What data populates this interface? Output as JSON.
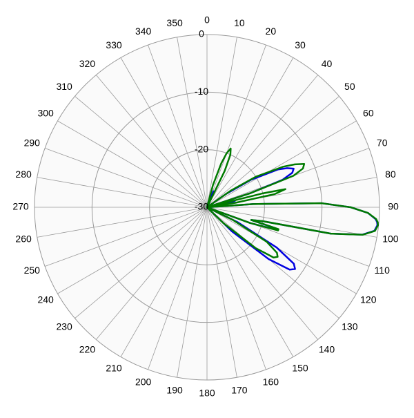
{
  "chart_data": {
    "type": "polar-line",
    "xlim": [
      0,
      360
    ],
    "xticks": [
      0,
      10,
      20,
      30,
      40,
      50,
      60,
      70,
      80,
      90,
      100,
      110,
      120,
      130,
      140,
      150,
      160,
      170,
      180,
      190,
      200,
      210,
      220,
      230,
      240,
      250,
      260,
      270,
      280,
      290,
      300,
      310,
      320,
      330,
      340,
      350
    ],
    "ylim": [
      -30,
      0
    ],
    "yticks": [
      0,
      -10,
      -20,
      -30
    ],
    "grid": true,
    "x": [
      0,
      5,
      10,
      15,
      18,
      20,
      22,
      24,
      26,
      30,
      40,
      50,
      55,
      58,
      62,
      64,
      66,
      68,
      70,
      72,
      74,
      76,
      77,
      79,
      81,
      83,
      86,
      88,
      90,
      92,
      94,
      95,
      96,
      98,
      100,
      102,
      104,
      106,
      107,
      108,
      110,
      112,
      116,
      120,
      123,
      125,
      127,
      130,
      134,
      140,
      180,
      270,
      360
    ],
    "series": [
      {
        "color": "#0000e0",
        "values": [
          -30,
          -30,
          -30,
          -29,
          -28,
          -28,
          -27,
          -28,
          -29,
          -30,
          -30,
          -30,
          -26,
          -21,
          -16,
          -14.5,
          -13.5,
          -14,
          -16,
          -22,
          -30,
          -26,
          -25,
          -26,
          -28,
          -30,
          -22,
          -10,
          -5,
          -2,
          -0.6,
          -0.3,
          -0.2,
          -0.6,
          -2.6,
          -8,
          -20,
          -22,
          -17.5,
          -17.5,
          -22,
          -30,
          -24,
          -16,
          -12,
          -11.3,
          -12,
          -16,
          -24,
          -30,
          -30,
          -30,
          -30
        ]
      },
      {
        "color": "#007a00",
        "values": [
          -30,
          -30,
          -30,
          -26,
          -22,
          -20,
          -19,
          -20,
          -23,
          -30,
          -30,
          -30,
          -25,
          -20,
          -15,
          -13,
          -11.5,
          -12,
          -14,
          -22,
          -30,
          -20,
          -16,
          -18,
          -25,
          -30,
          -22,
          -10,
          -5,
          -2,
          -0.5,
          -0.2,
          -0.1,
          -0.5,
          -2.5,
          -8,
          -20,
          -22,
          -17,
          -17,
          -22,
          -30,
          -25,
          -18,
          -15.5,
          -15,
          -15.5,
          -19,
          -26,
          -30,
          -30,
          -30,
          -30
        ]
      }
    ]
  }
}
